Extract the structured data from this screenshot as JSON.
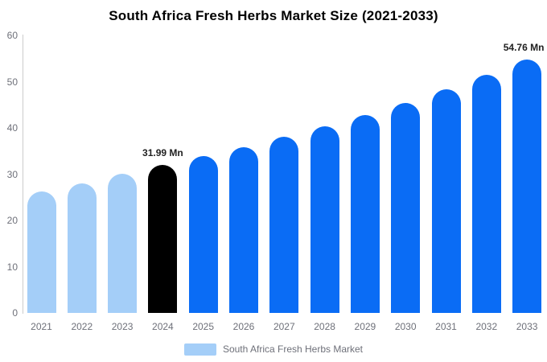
{
  "chart_data": {
    "type": "bar",
    "title": "South Africa Fresh Herbs Market Size (2021-2033)",
    "categories": [
      "2021",
      "2022",
      "2023",
      "2024",
      "2025",
      "2026",
      "2027",
      "2028",
      "2029",
      "2030",
      "2031",
      "2032",
      "2033"
    ],
    "values": [
      26.3,
      28.0,
      30.1,
      31.99,
      33.9,
      35.9,
      38.1,
      40.4,
      42.8,
      45.4,
      48.3,
      51.4,
      54.76
    ],
    "unit": "Mn",
    "ylim": [
      0,
      60
    ],
    "yticks": [
      0,
      10,
      20,
      30,
      40,
      50,
      60
    ],
    "grid": false,
    "bar_color_roles": [
      "historical",
      "historical",
      "historical",
      "base_year",
      "forecast",
      "forecast",
      "forecast",
      "forecast",
      "forecast",
      "forecast",
      "forecast",
      "forecast",
      "forecast"
    ],
    "series_colors": {
      "historical": "#A4CEF8",
      "base_year": "#000000",
      "forecast": "#0A6CF5"
    },
    "annotations": [
      {
        "category": "2024",
        "text": "31.99 Mn"
      },
      {
        "category": "2033",
        "text": "54.76 Mn"
      }
    ],
    "legend": {
      "position": "bottom",
      "items": [
        {
          "label": "South Africa Fresh Herbs Market",
          "color": "#A4CEF8"
        }
      ]
    },
    "axis": {
      "line_color": "#CCCCCC",
      "tick_text_color": "#6E7079"
    },
    "value_label_color": "#1F1F1F",
    "title_color": "#000000"
  }
}
